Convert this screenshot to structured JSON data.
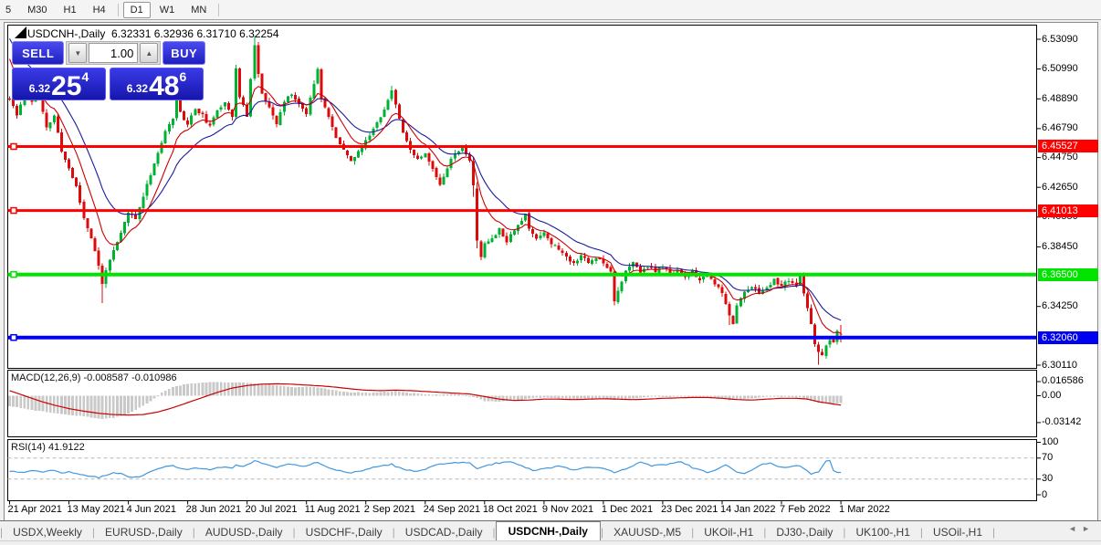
{
  "toolbar": {
    "items": [
      "5",
      "M30",
      "H1",
      "H4",
      "|",
      "D1",
      "W1",
      "MN",
      "|"
    ],
    "active": "D1"
  },
  "header": {
    "symbol": "USDCNH-,Daily",
    "quote": "6.32331 6.32936 6.31710 6.32254"
  },
  "trade_panel": {
    "sell_label": "SELL",
    "buy_label": "BUY",
    "volume": "1.00",
    "decrease_icon": "▼",
    "increase_icon": "▲",
    "sell_price": {
      "base": "6.32",
      "big": "25",
      "sup": "4"
    },
    "buy_price": {
      "base": "6.32",
      "big": "48",
      "sup": "6"
    }
  },
  "price_axis": {
    "ticks": [
      "6.53090",
      "6.50990",
      "6.48890",
      "6.46790",
      "6.44750",
      "6.42650",
      "6.40550",
      "6.38450",
      "6.34250",
      "6.30110"
    ],
    "line_labels": [
      {
        "text": "6.45527",
        "value": 6.45527,
        "color": "#FF0000",
        "width": 3
      },
      {
        "text": "6.41013",
        "value": 6.41013,
        "color": "#FF0000",
        "width": 3
      },
      {
        "text": "6.36500",
        "value": 6.365,
        "color": "#00E400",
        "width": 4
      },
      {
        "text": "6.32060",
        "value": 6.3206,
        "color": "#0000F0",
        "width": 4
      }
    ]
  },
  "macd": {
    "label": "MACD(12,26,9) -0.008587 -0.010986",
    "axis": [
      {
        "t": "0.016586",
        "v": 0.016586
      },
      {
        "t": "0.00",
        "v": 0
      },
      {
        "t": "-0.03142",
        "v": -0.03142
      }
    ]
  },
  "rsi": {
    "label": "RSI(14) 41.9122",
    "axis": [
      {
        "t": "100",
        "v": 100
      },
      {
        "t": "70",
        "v": 70
      },
      {
        "t": "30",
        "v": 30
      },
      {
        "t": "0",
        "v": 0
      }
    ],
    "levels": [
      70,
      30
    ]
  },
  "time_axis": {
    "labels": [
      "21 Apr 2021",
      "13 May 2021",
      "4 Jun 2021",
      "28 Jun 2021",
      "20 Jul 2021",
      "11 Aug 2021",
      "2 Sep 2021",
      "24 Sep 2021",
      "18 Oct 2021",
      "9 Nov 2021",
      "1 Dec 2021",
      "23 Dec 2021",
      "14 Jan 2022",
      "7 Feb 2022",
      "1 Mar 2022"
    ],
    "bars_per_tick": 16
  },
  "tabs": {
    "items": [
      {
        "label": "USDX,Weekly"
      },
      {
        "label": "EURUSD-,Daily"
      },
      {
        "label": "AUDUSD-,Daily"
      },
      {
        "label": "USDCHF-,Daily"
      },
      {
        "label": "USDCAD-,Daily"
      },
      {
        "label": "USDCNH-,Daily",
        "active": true
      },
      {
        "label": "XAUUSD-,M5"
      },
      {
        "label": "UKOil-,H1"
      },
      {
        "label": "DJ30-,Daily"
      },
      {
        "label": "UK100-,H1"
      },
      {
        "label": "USOil-,H1"
      }
    ],
    "scroll_left": "◄",
    "scroll_right": "►"
  },
  "chart_data": {
    "type": "candlestick",
    "symbol": "USDCNH-",
    "timeframe": "Daily",
    "bars": 225,
    "ylim": [
      6.2998,
      6.5406
    ],
    "current_bar_ohlc": [
      6.32331,
      6.32936,
      6.3171,
      6.32254
    ],
    "levels": [
      6.45527,
      6.41013,
      6.365,
      6.3206
    ],
    "colors": {
      "up": "#00B232",
      "down": "#DC0A0A",
      "ma_fast": "#CC0000",
      "ma_slow": "#1B1BA0",
      "macd_hist": "#C9C9C9",
      "macd_signal": "#CC0000",
      "rsi": "#4197DF",
      "hline_handle_fill": "#ffffff"
    },
    "close_anchors": [
      [
        0,
        6.489
      ],
      [
        2,
        6.477
      ],
      [
        4,
        6.493
      ],
      [
        6,
        6.487
      ],
      [
        8,
        6.49
      ],
      [
        10,
        6.468
      ],
      [
        12,
        6.477
      ],
      [
        14,
        6.452
      ],
      [
        16,
        6.44
      ],
      [
        18,
        6.427
      ],
      [
        20,
        6.405
      ],
      [
        22,
        6.391
      ],
      [
        24,
        6.371
      ],
      [
        25,
        6.358
      ],
      [
        26,
        6.369
      ],
      [
        28,
        6.381
      ],
      [
        30,
        6.394
      ],
      [
        32,
        6.409
      ],
      [
        34,
        6.404
      ],
      [
        36,
        6.421
      ],
      [
        38,
        6.436
      ],
      [
        40,
        6.451
      ],
      [
        42,
        6.465
      ],
      [
        44,
        6.476
      ],
      [
        45,
        6.495
      ],
      [
        46,
        6.479
      ],
      [
        48,
        6.471
      ],
      [
        50,
        6.482
      ],
      [
        52,
        6.477
      ],
      [
        54,
        6.469
      ],
      [
        56,
        6.481
      ],
      [
        58,
        6.487
      ],
      [
        60,
        6.477
      ],
      [
        61,
        6.51
      ],
      [
        62,
        6.49
      ],
      [
        64,
        6.477
      ],
      [
        65,
        6.504
      ],
      [
        66,
        6.527
      ],
      [
        67,
        6.506
      ],
      [
        68,
        6.493
      ],
      [
        70,
        6.482
      ],
      [
        72,
        6.471
      ],
      [
        74,
        6.487
      ],
      [
        76,
        6.493
      ],
      [
        78,
        6.485
      ],
      [
        80,
        6.479
      ],
      [
        82,
        6.5
      ],
      [
        83,
        6.511
      ],
      [
        84,
        6.49
      ],
      [
        86,
        6.476
      ],
      [
        88,
        6.461
      ],
      [
        90,
        6.454
      ],
      [
        92,
        6.445
      ],
      [
        94,
        6.451
      ],
      [
        96,
        6.459
      ],
      [
        98,
        6.468
      ],
      [
        100,
        6.477
      ],
      [
        102,
        6.487
      ],
      [
        103,
        6.496
      ],
      [
        104,
        6.484
      ],
      [
        106,
        6.466
      ],
      [
        108,
        6.453
      ],
      [
        110,
        6.447
      ],
      [
        112,
        6.451
      ],
      [
        114,
        6.439
      ],
      [
        116,
        6.429
      ],
      [
        118,
        6.441
      ],
      [
        120,
        6.451
      ],
      [
        122,
        6.454
      ],
      [
        124,
        6.446
      ],
      [
        125,
        6.427
      ],
      [
        126,
        6.389
      ],
      [
        127,
        6.378
      ],
      [
        128,
        6.386
      ],
      [
        130,
        6.391
      ],
      [
        132,
        6.397
      ],
      [
        134,
        6.389
      ],
      [
        136,
        6.397
      ],
      [
        138,
        6.403
      ],
      [
        139,
        6.408
      ],
      [
        140,
        6.397
      ],
      [
        142,
        6.391
      ],
      [
        144,
        6.395
      ],
      [
        146,
        6.387
      ],
      [
        148,
        6.383
      ],
      [
        150,
        6.377
      ],
      [
        152,
        6.373
      ],
      [
        154,
        6.379
      ],
      [
        156,
        6.373
      ],
      [
        158,
        6.377
      ],
      [
        160,
        6.374
      ],
      [
        162,
        6.367
      ],
      [
        163,
        6.347
      ],
      [
        164,
        6.354
      ],
      [
        166,
        6.367
      ],
      [
        168,
        6.373
      ],
      [
        170,
        6.367
      ],
      [
        172,
        6.371
      ],
      [
        174,
        6.367
      ],
      [
        176,
        6.371
      ],
      [
        178,
        6.365
      ],
      [
        180,
        6.369
      ],
      [
        182,
        6.363
      ],
      [
        184,
        6.367
      ],
      [
        186,
        6.361
      ],
      [
        188,
        6.364
      ],
      [
        190,
        6.359
      ],
      [
        192,
        6.351
      ],
      [
        194,
        6.337
      ],
      [
        195,
        6.331
      ],
      [
        196,
        6.343
      ],
      [
        198,
        6.353
      ],
      [
        200,
        6.357
      ],
      [
        202,
        6.351
      ],
      [
        204,
        6.357
      ],
      [
        206,
        6.361
      ],
      [
        208,
        6.357
      ],
      [
        210,
        6.361
      ],
      [
        212,
        6.357
      ],
      [
        213,
        6.364
      ],
      [
        214,
        6.351
      ],
      [
        215,
        6.341
      ],
      [
        216,
        6.329
      ],
      [
        217,
        6.317
      ],
      [
        218,
        6.311
      ],
      [
        219,
        6.307
      ],
      [
        220,
        6.314
      ],
      [
        221,
        6.319
      ],
      [
        222,
        6.317
      ],
      [
        223,
        6.324
      ],
      [
        224,
        6.3225
      ]
    ],
    "overrides": {
      "25": {
        "low": 6.345
      },
      "66": {
        "high": 6.533
      },
      "103": {
        "high": 6.498
      },
      "125": {
        "low": 6.42
      },
      "126": {
        "open": 6.4255,
        "close": 6.389,
        "low": 6.3835
      },
      "194": {
        "low": 6.3295
      },
      "218": {
        "low": 6.3015
      },
      "224": {
        "open": 6.32331,
        "high": 6.32936,
        "low": 6.3171,
        "close": 6.32254
      }
    },
    "macd_hist": [
      [
        0,
        -0.012
      ],
      [
        5,
        -0.016
      ],
      [
        10,
        -0.019
      ],
      [
        15,
        -0.022
      ],
      [
        20,
        -0.024
      ],
      [
        25,
        -0.027
      ],
      [
        28,
        -0.026
      ],
      [
        32,
        -0.021
      ],
      [
        36,
        -0.012
      ],
      [
        39,
        -0.003
      ],
      [
        41,
        0.004
      ],
      [
        44,
        0.01
      ],
      [
        48,
        0.014
      ],
      [
        52,
        0.0155
      ],
      [
        56,
        0.016
      ],
      [
        60,
        0.0155
      ],
      [
        64,
        0.015
      ],
      [
        68,
        0.0145
      ],
      [
        72,
        0.012
      ],
      [
        76,
        0.01
      ],
      [
        80,
        0.0105
      ],
      [
        84,
        0.009
      ],
      [
        88,
        0.006
      ],
      [
        92,
        0.004
      ],
      [
        96,
        0.0035
      ],
      [
        100,
        0.004
      ],
      [
        104,
        0.005
      ],
      [
        108,
        0.003
      ],
      [
        112,
        0.002
      ],
      [
        116,
        0.001
      ],
      [
        120,
        0.002
      ],
      [
        124,
        0
      ],
      [
        126,
        -0.003
      ],
      [
        128,
        -0.006
      ],
      [
        132,
        -0.007
      ],
      [
        136,
        -0.005
      ],
      [
        140,
        -0.003
      ],
      [
        144,
        -0.002
      ],
      [
        148,
        -0.003
      ],
      [
        152,
        -0.004
      ],
      [
        156,
        -0.003
      ],
      [
        160,
        -0.0025
      ],
      [
        163,
        -0.005
      ],
      [
        166,
        -0.004
      ],
      [
        170,
        -0.002
      ],
      [
        174,
        -0.001
      ],
      [
        178,
        -0.0015
      ],
      [
        182,
        -0.001
      ],
      [
        186,
        -0.0005
      ],
      [
        190,
        -0.002
      ],
      [
        194,
        -0.005
      ],
      [
        198,
        -0.004
      ],
      [
        202,
        -0.002
      ],
      [
        206,
        -0.001
      ],
      [
        210,
        -0.0015
      ],
      [
        213,
        -0.002
      ],
      [
        216,
        -0.006
      ],
      [
        219,
        -0.009
      ],
      [
        222,
        -0.0095
      ],
      [
        224,
        -0.0086
      ]
    ],
    "macd_signal": [
      [
        0,
        0.006
      ],
      [
        4,
        0
      ],
      [
        8,
        -0.006
      ],
      [
        12,
        -0.011
      ],
      [
        16,
        -0.015
      ],
      [
        20,
        -0.018
      ],
      [
        24,
        -0.0205
      ],
      [
        28,
        -0.022
      ],
      [
        32,
        -0.0225
      ],
      [
        36,
        -0.022
      ],
      [
        40,
        -0.019
      ],
      [
        44,
        -0.014
      ],
      [
        48,
        -0.008
      ],
      [
        52,
        -0.002
      ],
      [
        56,
        0.004
      ],
      [
        60,
        0.009
      ],
      [
        64,
        0.012
      ],
      [
        68,
        0.0135
      ],
      [
        72,
        0.014
      ],
      [
        76,
        0.0135
      ],
      [
        80,
        0.0125
      ],
      [
        84,
        0.0115
      ],
      [
        88,
        0.01
      ],
      [
        92,
        0.008
      ],
      [
        96,
        0.0065
      ],
      [
        100,
        0.006
      ],
      [
        104,
        0.0065
      ],
      [
        108,
        0.006
      ],
      [
        112,
        0.005
      ],
      [
        116,
        0.004
      ],
      [
        120,
        0.003
      ],
      [
        124,
        0.002
      ],
      [
        128,
        -0.001
      ],
      [
        132,
        -0.004
      ],
      [
        136,
        -0.0055
      ],
      [
        140,
        -0.005
      ],
      [
        144,
        -0.004
      ],
      [
        148,
        -0.004
      ],
      [
        152,
        -0.0045
      ],
      [
        156,
        -0.004
      ],
      [
        160,
        -0.0035
      ],
      [
        164,
        -0.004
      ],
      [
        168,
        -0.0045
      ],
      [
        172,
        -0.004
      ],
      [
        176,
        -0.003
      ],
      [
        180,
        -0.0025
      ],
      [
        184,
        -0.002
      ],
      [
        188,
        -0.002
      ],
      [
        192,
        -0.003
      ],
      [
        196,
        -0.0045
      ],
      [
        200,
        -0.005
      ],
      [
        204,
        -0.004
      ],
      [
        208,
        -0.003
      ],
      [
        212,
        -0.003
      ],
      [
        215,
        -0.004
      ],
      [
        218,
        -0.007
      ],
      [
        221,
        -0.009
      ],
      [
        224,
        -0.011
      ]
    ],
    "rsi_series": [
      [
        0,
        45
      ],
      [
        3,
        42
      ],
      [
        6,
        46
      ],
      [
        9,
        43
      ],
      [
        12,
        47
      ],
      [
        14,
        42
      ],
      [
        16,
        44
      ],
      [
        18,
        40
      ],
      [
        20,
        38
      ],
      [
        22,
        35
      ],
      [
        24,
        33
      ],
      [
        26,
        38
      ],
      [
        28,
        42
      ],
      [
        30,
        40
      ],
      [
        33,
        32
      ],
      [
        35,
        34
      ],
      [
        38,
        45
      ],
      [
        40,
        50
      ],
      [
        42,
        53
      ],
      [
        44,
        56
      ],
      [
        46,
        50
      ],
      [
        48,
        48
      ],
      [
        50,
        52
      ],
      [
        52,
        50
      ],
      [
        54,
        48
      ],
      [
        56,
        52
      ],
      [
        58,
        54
      ],
      [
        60,
        51
      ],
      [
        61,
        58
      ],
      [
        63,
        53
      ],
      [
        65,
        60
      ],
      [
        66,
        66
      ],
      [
        68,
        60
      ],
      [
        70,
        56
      ],
      [
        72,
        52
      ],
      [
        74,
        57
      ],
      [
        76,
        59
      ],
      [
        78,
        56
      ],
      [
        80,
        54
      ],
      [
        82,
        60
      ],
      [
        83,
        62
      ],
      [
        85,
        55
      ],
      [
        88,
        48
      ],
      [
        90,
        45
      ],
      [
        92,
        42
      ],
      [
        94,
        45
      ],
      [
        96,
        48
      ],
      [
        98,
        52
      ],
      [
        100,
        55
      ],
      [
        103,
        58
      ],
      [
        104,
        54
      ],
      [
        106,
        49
      ],
      [
        108,
        46
      ],
      [
        110,
        44
      ],
      [
        113,
        52
      ],
      [
        116,
        58
      ],
      [
        120,
        62
      ],
      [
        124,
        60
      ],
      [
        126,
        50
      ],
      [
        128,
        55
      ],
      [
        131,
        60
      ],
      [
        135,
        63
      ],
      [
        138,
        55
      ],
      [
        141,
        46
      ],
      [
        144,
        50
      ],
      [
        148,
        54
      ],
      [
        152,
        48
      ],
      [
        156,
        52
      ],
      [
        160,
        50
      ],
      [
        163,
        42
      ],
      [
        166,
        50
      ],
      [
        170,
        62
      ],
      [
        173,
        55
      ],
      [
        177,
        58
      ],
      [
        181,
        63
      ],
      [
        184,
        52
      ],
      [
        188,
        42
      ],
      [
        191,
        50
      ],
      [
        193,
        58
      ],
      [
        196,
        44
      ],
      [
        198,
        40
      ],
      [
        200,
        48
      ],
      [
        203,
        58
      ],
      [
        205,
        60
      ],
      [
        208,
        52
      ],
      [
        211,
        54
      ],
      [
        213,
        56
      ],
      [
        216,
        40
      ],
      [
        218,
        44
      ],
      [
        220,
        64
      ],
      [
        221,
        66
      ],
      [
        222,
        46
      ],
      [
        223,
        43
      ],
      [
        224,
        42
      ]
    ]
  }
}
